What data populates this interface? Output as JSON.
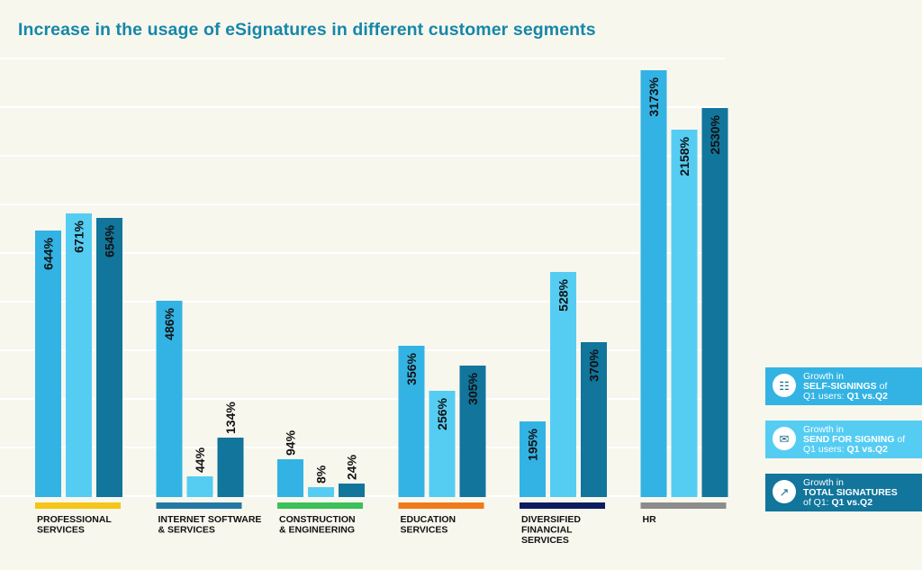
{
  "chart_data": {
    "type": "bar",
    "title": "Increase in the usage of eSignatures in different customer segments",
    "categories": [
      {
        "label": [
          "PROFESSIONAL",
          "SERVICES"
        ],
        "color": "#f5c518"
      },
      {
        "label": [
          "INTERNET SOFTWARE",
          "& SERVICES"
        ],
        "color": "#2478a4"
      },
      {
        "label": [
          "CONSTRUCTION",
          "& ENGINEERING"
        ],
        "color": "#3cc05a"
      },
      {
        "label": [
          "EDUCATION",
          "SERVICES"
        ],
        "color": "#f07a19"
      },
      {
        "label": [
          "DIVERSIFIED",
          "FINANCIAL",
          "SERVICES"
        ],
        "color": "#0d1d5e"
      },
      {
        "label": [
          "HR"
        ],
        "color": "#8c8c8c"
      }
    ],
    "series": [
      {
        "color": "#33b3e3",
        "values": [
          644,
          486,
          94,
          356,
          195,
          3173
        ],
        "labels": [
          "644%",
          "486%",
          "94%",
          "356%",
          "195%",
          "3173%"
        ]
      },
      {
        "color": "#55cdf3",
        "values": [
          671,
          44,
          8,
          256,
          528,
          2158
        ],
        "labels": [
          "671%",
          "44%",
          "8%",
          "256%",
          "528%",
          "2158%"
        ]
      },
      {
        "color": "#11759c",
        "values": [
          654,
          134,
          24,
          305,
          370,
          2530
        ],
        "labels": [
          "654%",
          "134%",
          "24%",
          "305%",
          "370%",
          "2530%"
        ]
      }
    ],
    "grid": true
  },
  "legend": [
    {
      "line1": "Growth in",
      "bold": "SELF-SIGNINGS",
      "tail": " of",
      "line3a": "Q1 users: ",
      "line3b": "Q1 vs.Q2",
      "color": "#33b3e3",
      "icon": "document-icon",
      "glyph": "☷"
    },
    {
      "line1": "Growth in",
      "bold": "SEND FOR SIGNING",
      "tail": " of",
      "line3a": "Q1 users: ",
      "line3b": "Q1 vs.Q2",
      "color": "#55cdf3",
      "icon": "envelope-icon",
      "glyph": "✉"
    },
    {
      "line1": "Growth in",
      "bold": "TOTAL SIGNATURES",
      "tail": "",
      "line3a": "of Q1: ",
      "line3b": "Q1 vs.Q2",
      "color": "#11759c",
      "icon": "growth-chart-icon",
      "glyph": "↗"
    }
  ]
}
